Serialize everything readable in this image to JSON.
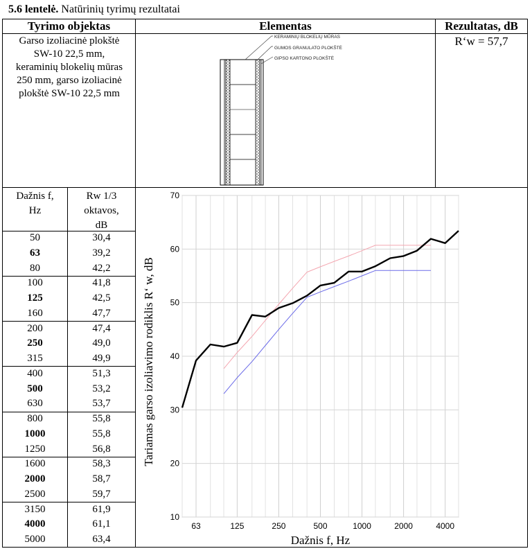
{
  "caption": {
    "number": "5.6 lentelė.",
    "text": "Natūrinių tyrimų rezultatai"
  },
  "headers": {
    "object": "Tyrimo objektas",
    "element": "Elementas",
    "result": "Rezultatas, dB"
  },
  "object_lines": [
    "Garso izoliacinė plokštė",
    "SW-10 22,5 mm,",
    "keraminių blokelių mūras",
    "250 mm, garso izoliacinė",
    "plokštė SW-10 22,5 mm"
  ],
  "result_value": "R‘w = 57,7",
  "drawing_labels": {
    "l1": "KERAMINIŲ BLOKELIŲ MŪRAS",
    "l2": "GUMOS GRANULATO PLOKŠTĖ",
    "l3": "GIPSO KARTONO PLOKŠTĖ"
  },
  "table": {
    "col1_lines": [
      "Dažnis f,",
      "Hz"
    ],
    "col2_lines": [
      "Rw 1/3",
      "oktavos,",
      "dB"
    ],
    "rows": [
      {
        "f": "50",
        "r": "30,4",
        "bold": false
      },
      {
        "f": "63",
        "r": "39,2",
        "bold": true
      },
      {
        "f": "80",
        "r": "42,2",
        "bold": false
      },
      {
        "f": "100",
        "r": "41,8",
        "bold": false
      },
      {
        "f": "125",
        "r": "42,5",
        "bold": true
      },
      {
        "f": "160",
        "r": "47,7",
        "bold": false
      },
      {
        "f": "200",
        "r": "47,4",
        "bold": false
      },
      {
        "f": "250",
        "r": "49,0",
        "bold": true
      },
      {
        "f": "315",
        "r": "49,9",
        "bold": false
      },
      {
        "f": "400",
        "r": "51,3",
        "bold": false
      },
      {
        "f": "500",
        "r": "53,2",
        "bold": true
      },
      {
        "f": "630",
        "r": "53,7",
        "bold": false
      },
      {
        "f": "800",
        "r": "55,8",
        "bold": false
      },
      {
        "f": "1000",
        "r": "55,8",
        "bold": true
      },
      {
        "f": "1250",
        "r": "56,8",
        "bold": false
      },
      {
        "f": "1600",
        "r": "58,3",
        "bold": false
      },
      {
        "f": "2000",
        "r": "58,7",
        "bold": true
      },
      {
        "f": "2500",
        "r": "59,7",
        "bold": false
      },
      {
        "f": "3150",
        "r": "61,9",
        "bold": false
      },
      {
        "f": "4000",
        "r": "61,1",
        "bold": true
      },
      {
        "f": "5000",
        "r": "63,4",
        "bold": false
      }
    ]
  },
  "chart_data": {
    "type": "line",
    "xlabel": "Dažnis f, Hz",
    "ylabel": "Tariamas garso izoliavimo rodiklis R‘ w, dB",
    "x_scale": "log",
    "xlim": [
      50,
      5000
    ],
    "ylim": [
      10,
      70
    ],
    "yticks": [
      10,
      20,
      30,
      40,
      50,
      60,
      70
    ],
    "xtick_labels": [
      "63",
      "125",
      "250",
      "500",
      "1000",
      "2000",
      "4000"
    ],
    "xtick_values": [
      63,
      125,
      250,
      500,
      1000,
      2000,
      4000
    ],
    "grid": true,
    "colors": {
      "measured": "#000000",
      "reference_pink": "#f4a6b0",
      "reference_blue": "#6a6ae8"
    },
    "series": [
      {
        "x": [
          50,
          63,
          80,
          100,
          125,
          160,
          200,
          250,
          315,
          400,
          500,
          630,
          800,
          1000,
          1250,
          1600,
          2000,
          2500,
          3150,
          4000,
          5000
        ],
        "y": [
          30.4,
          39.2,
          42.2,
          41.8,
          42.5,
          47.7,
          47.4,
          49.0,
          49.9,
          51.3,
          53.2,
          53.7,
          55.8,
          55.8,
          56.8,
          58.3,
          58.7,
          59.7,
          61.9,
          61.1,
          63.4
        ]
      },
      {
        "x": [
          100,
          125,
          160,
          200,
          250,
          315,
          400,
          500,
          630,
          800,
          1000,
          1250,
          1600,
          2000,
          2500,
          3150
        ],
        "y": [
          37.7,
          40.7,
          43.7,
          46.7,
          49.7,
          52.7,
          55.7,
          56.7,
          57.7,
          58.7,
          59.7,
          60.7,
          60.7,
          60.7,
          60.7,
          60.7
        ]
      },
      {
        "x": [
          100,
          125,
          160,
          200,
          250,
          315,
          400,
          500,
          630,
          800,
          1000,
          1250,
          1600,
          2000,
          2500,
          3150
        ],
        "y": [
          33.0,
          36.0,
          39.0,
          42.0,
          45.0,
          48.0,
          51.0,
          52.0,
          53.0,
          54.0,
          55.0,
          56.0,
          56.0,
          56.0,
          56.0,
          56.0
        ]
      }
    ]
  }
}
